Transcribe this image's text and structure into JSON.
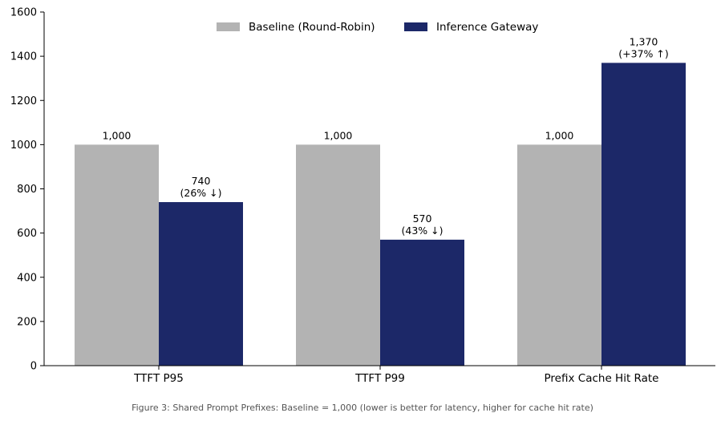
{
  "chart_data": {
    "type": "bar",
    "categories": [
      "TTFT P95",
      "TTFT P99",
      "Prefix Cache Hit Rate"
    ],
    "series": [
      {
        "name": "Baseline (Round-Robin)",
        "color": "#b3b3b3",
        "values": [
          1000,
          1000,
          1000
        ],
        "labels": [
          [
            "1,000"
          ],
          [
            "1,000"
          ],
          [
            "1,000"
          ]
        ]
      },
      {
        "name": "Inference Gateway",
        "color": "#1c2868",
        "values": [
          740,
          570,
          1370
        ],
        "labels": [
          [
            "740",
            "(26% ↓)"
          ],
          [
            "570",
            "(43% ↓)"
          ],
          [
            "1,370",
            "(+37% ↑)"
          ]
        ]
      }
    ],
    "ylim": [
      0,
      1600
    ],
    "yticks": [
      0,
      200,
      400,
      600,
      800,
      1000,
      1200,
      1400,
      1600
    ],
    "grid": false,
    "legend_position": "top-center",
    "caption": "Figure 3: Shared Prompt Prefixes: Baseline = 1,000 (lower is better for latency, higher for cache hit rate)"
  }
}
